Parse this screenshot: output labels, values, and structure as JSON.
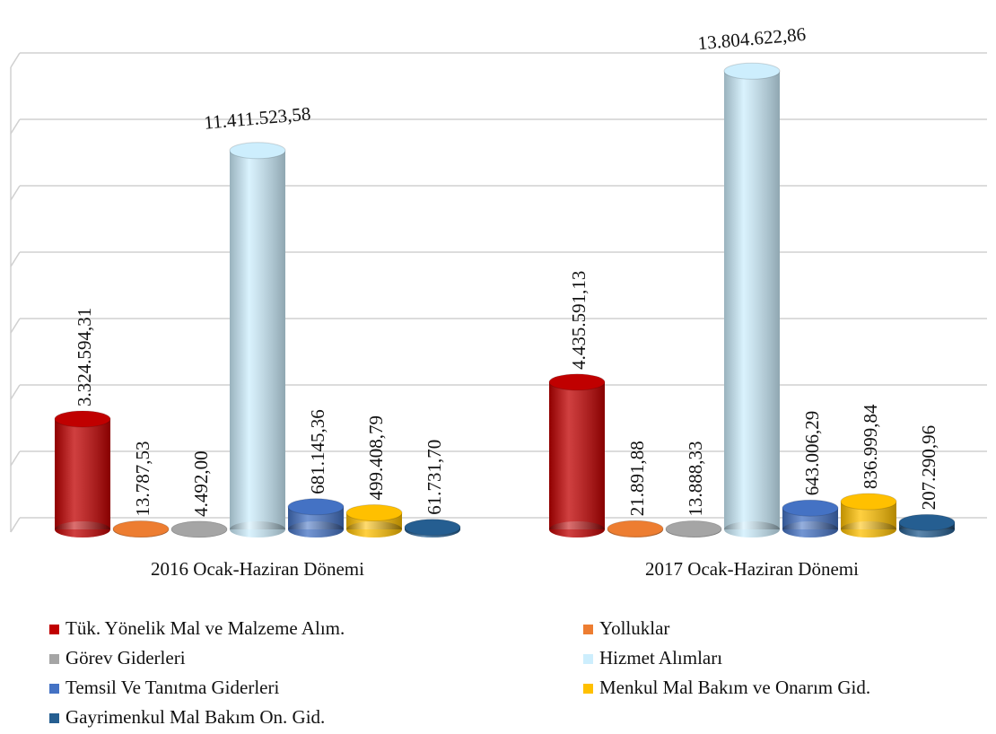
{
  "chart_data": {
    "type": "bar3d",
    "categories": [
      "2016 Ocak-Haziran Dönemi",
      "2017 Ocak-Haziran Dönemi"
    ],
    "series": [
      {
        "name": "Tük. Yönelik Mal ve Malzeme Alım.",
        "color": "#c00000",
        "values": [
          3324594.31,
          4435591.13
        ],
        "value_labels": [
          "3.324.594,31",
          "4.435.591,13"
        ]
      },
      {
        "name": "Yolluklar",
        "color": "#ed7d31",
        "values": [
          13787.53,
          21891.88
        ],
        "value_labels": [
          "13.787,53",
          "21.891,88"
        ]
      },
      {
        "name": "Görev Giderleri",
        "color": "#a5a5a5",
        "values": [
          4492.0,
          13888.33
        ],
        "value_labels": [
          "4.492,00",
          "13.888,33"
        ]
      },
      {
        "name": "Hizmet Alımları",
        "color": "#cdeefd",
        "values": [
          11411523.58,
          13804622.86
        ],
        "value_labels": [
          "11.411.523,58",
          "13.804.622,86"
        ]
      },
      {
        "name": "Temsil Ve Tanıtma Giderleri",
        "color": "#4472c4",
        "values": [
          681145.36,
          643006.29
        ],
        "value_labels": [
          "681.145,36",
          "643.006,29"
        ]
      },
      {
        "name": "Menkul Mal Bakım ve Onarım Gid.",
        "color": "#ffc000",
        "values": [
          499408.79,
          836999.84
        ],
        "value_labels": [
          "499.408,79",
          "836.999,84"
        ]
      },
      {
        "name": "Gayrimenkul Mal Bakım On. Gid.",
        "color": "#255e91",
        "values": [
          61731.7,
          207290.96
        ],
        "value_labels": [
          "61.731,70",
          "207.290,96"
        ]
      }
    ],
    "ylim": [
      0,
      16000000
    ],
    "yticks": [
      0,
      2000000,
      4000000,
      6000000,
      8000000,
      10000000,
      12000000,
      14000000
    ],
    "grid": true
  }
}
